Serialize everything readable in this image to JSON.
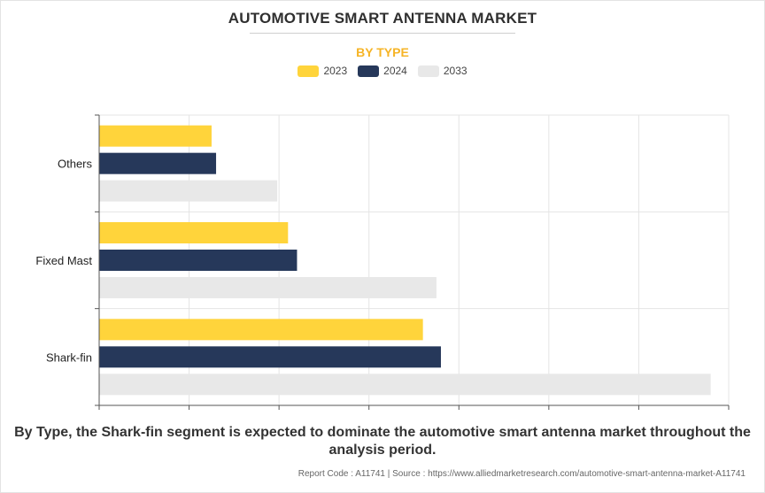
{
  "title": "AUTOMOTIVE SMART ANTENNA MARKET",
  "subtitle": "BY TYPE",
  "colors": {
    "2023": "#ffd43b",
    "2024": "#26385a",
    "2033": "#e8e8e8",
    "subtitle": "#f6b426"
  },
  "chart_data": {
    "type": "bar",
    "orientation": "horizontal",
    "title": "AUTOMOTIVE SMART ANTENNA MARKET",
    "subtitle": "BY TYPE",
    "categories": [
      "Others",
      "Fixed Mast",
      "Shark-fin"
    ],
    "series": [
      {
        "name": "2023",
        "values": [
          1.25,
          2.1,
          3.6
        ]
      },
      {
        "name": "2024",
        "values": [
          1.3,
          2.2,
          3.8
        ]
      },
      {
        "name": "2033",
        "values": [
          1.98,
          3.75,
          6.8
        ]
      }
    ],
    "xlim": [
      0,
      7
    ],
    "grid": true,
    "legend": "top-center",
    "xlabel": "",
    "ylabel": ""
  },
  "caption": "By Type, the Shark-fin segment is expected to dominate the automotive smart antenna market throughout the analysis period.",
  "footer": "Report Code : A11741  |  Source : https://www.alliedmarketresearch.com/automotive-smart-antenna-market-A11741"
}
